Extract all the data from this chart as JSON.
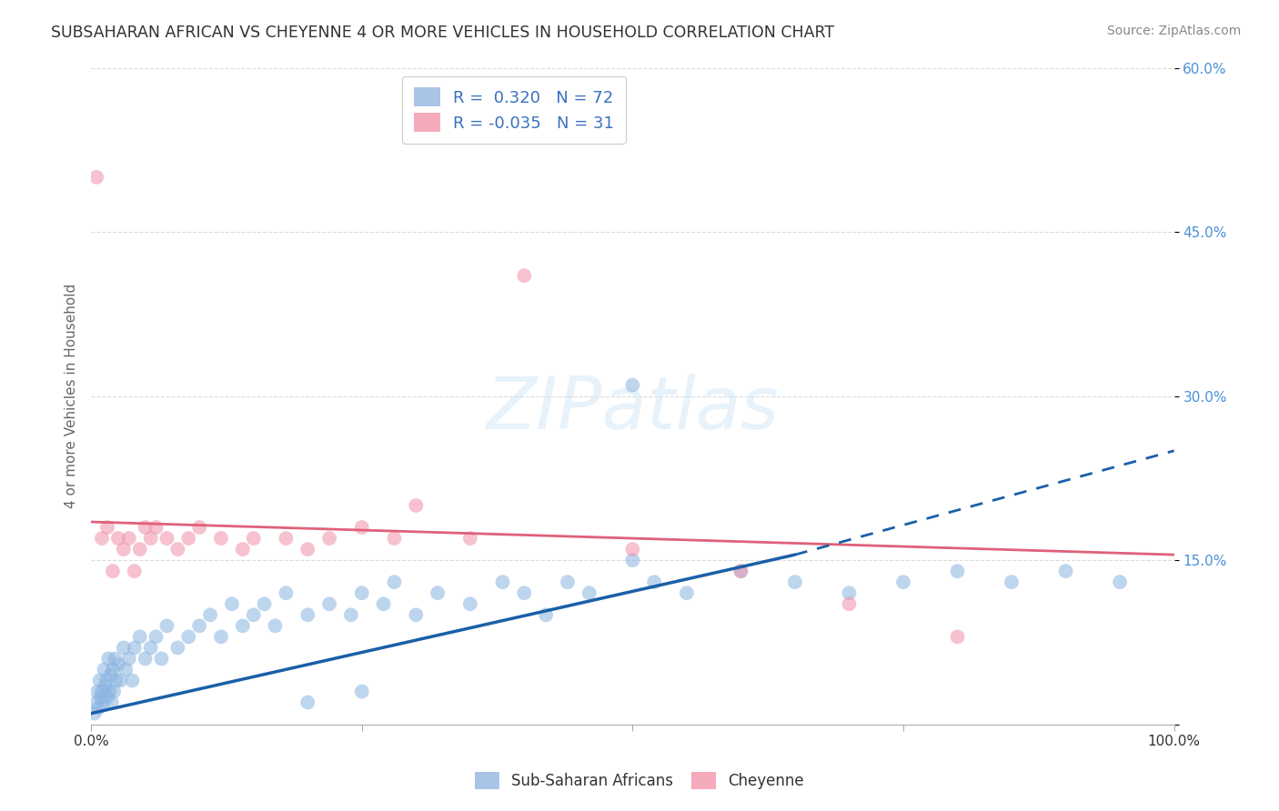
{
  "title": "SUBSAHARAN AFRICAN VS CHEYENNE 4 OR MORE VEHICLES IN HOUSEHOLD CORRELATION CHART",
  "source": "Source: ZipAtlas.com",
  "ylabel": "4 or more Vehicles in Household",
  "xlim": [
    0,
    100
  ],
  "ylim": [
    0,
    60
  ],
  "ytick_vals": [
    0,
    15,
    30,
    45,
    60
  ],
  "ytick_labels": [
    "",
    "15.0%",
    "30.0%",
    "45.0%",
    "60.0%"
  ],
  "xtick_vals": [
    0,
    25,
    50,
    75,
    100
  ],
  "xtick_labels": [
    "0.0%",
    "",
    "",
    "",
    "100.0%"
  ],
  "legend1_R": "0.320",
  "legend1_N": "72",
  "legend2_R": "-0.035",
  "legend2_N": "31",
  "legend_color1": "#aac4e8",
  "legend_color2": "#f5aabb",
  "scatter_color1": "#8ab4e0",
  "scatter_color2": "#f090a8",
  "line_color1": "#1a5fa8",
  "line_color2": "#e0607a",
  "grid_color": "#cccccc",
  "text_color": "#333333",
  "ytick_color": "#4a90d9",
  "background": "#ffffff",
  "watermark": "ZIPatlas",
  "blue_x": [
    0.3,
    0.5,
    0.6,
    0.7,
    0.8,
    0.9,
    1.0,
    1.1,
    1.2,
    1.3,
    1.4,
    1.5,
    1.6,
    1.7,
    1.8,
    1.9,
    2.0,
    2.1,
    2.2,
    2.3,
    2.5,
    2.7,
    3.0,
    3.2,
    3.5,
    3.8,
    4.0,
    4.5,
    5.0,
    5.5,
    6.0,
    6.5,
    7.0,
    8.0,
    9.0,
    10.0,
    11.0,
    12.0,
    13.0,
    14.0,
    15.0,
    16.0,
    17.0,
    18.0,
    20.0,
    22.0,
    24.0,
    25.0,
    27.0,
    28.0,
    30.0,
    32.0,
    35.0,
    38.0,
    40.0,
    42.0,
    44.0,
    46.0,
    50.0,
    52.0,
    55.0,
    60.0,
    65.0,
    70.0,
    75.0,
    80.0,
    85.0,
    90.0,
    95.0,
    50.0,
    20.0,
    25.0
  ],
  "blue_y": [
    1.0,
    2.0,
    3.0,
    1.5,
    4.0,
    2.5,
    3.0,
    2.0,
    5.0,
    3.5,
    4.0,
    2.5,
    6.0,
    3.0,
    4.5,
    2.0,
    5.0,
    3.0,
    6.0,
    4.0,
    5.5,
    4.0,
    7.0,
    5.0,
    6.0,
    4.0,
    7.0,
    8.0,
    6.0,
    7.0,
    8.0,
    6.0,
    9.0,
    7.0,
    8.0,
    9.0,
    10.0,
    8.0,
    11.0,
    9.0,
    10.0,
    11.0,
    9.0,
    12.0,
    10.0,
    11.0,
    10.0,
    12.0,
    11.0,
    13.0,
    10.0,
    12.0,
    11.0,
    13.0,
    12.0,
    10.0,
    13.0,
    12.0,
    15.0,
    13.0,
    12.0,
    14.0,
    13.0,
    12.0,
    13.0,
    14.0,
    13.0,
    14.0,
    13.0,
    31.0,
    2.0,
    3.0
  ],
  "pink_x": [
    0.5,
    1.0,
    1.5,
    2.0,
    2.5,
    3.0,
    3.5,
    4.0,
    4.5,
    5.0,
    5.5,
    6.0,
    7.0,
    8.0,
    9.0,
    10.0,
    12.0,
    14.0,
    15.0,
    18.0,
    20.0,
    22.0,
    25.0,
    28.0,
    30.0,
    35.0,
    40.0,
    50.0,
    60.0,
    70.0,
    80.0
  ],
  "pink_y": [
    50.0,
    17.0,
    18.0,
    14.0,
    17.0,
    16.0,
    17.0,
    14.0,
    16.0,
    18.0,
    17.0,
    18.0,
    17.0,
    16.0,
    17.0,
    18.0,
    17.0,
    16.0,
    17.0,
    17.0,
    16.0,
    17.0,
    18.0,
    17.0,
    20.0,
    17.0,
    41.0,
    16.0,
    14.0,
    11.0,
    8.0
  ],
  "blue_line_x0": 0,
  "blue_line_y0": 1.0,
  "blue_line_x1": 65,
  "blue_line_y1": 15.5,
  "blue_dash_x0": 65,
  "blue_dash_y0": 15.5,
  "blue_dash_x1": 100,
  "blue_dash_y1": 25.0,
  "pink_line_x0": 0,
  "pink_line_y0": 18.5,
  "pink_line_x1": 100,
  "pink_line_y1": 15.5
}
